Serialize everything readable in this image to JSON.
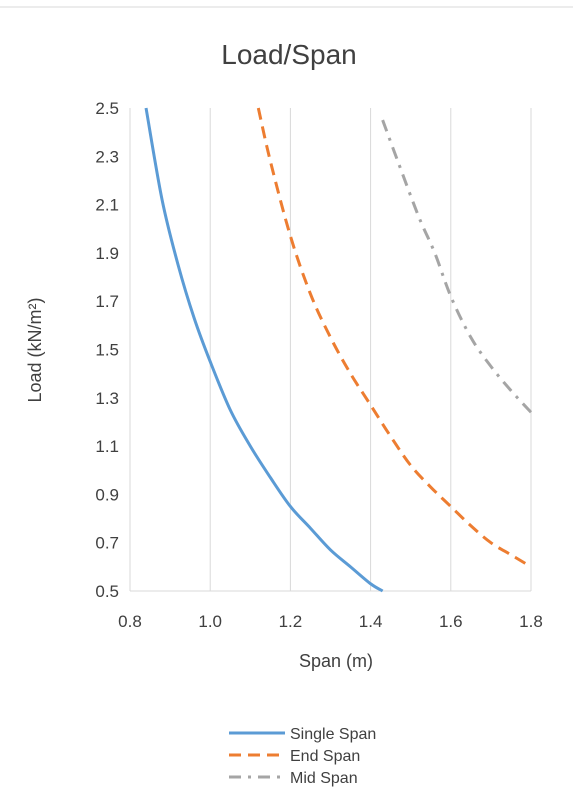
{
  "chart_data": {
    "type": "line",
    "title": "Load/Span",
    "xlabel": "Span (m)",
    "ylabel": "Load (kN/m²)",
    "xlim": [
      0.8,
      1.8
    ],
    "ylim": [
      0.5,
      2.5
    ],
    "xticks": [
      "0.8",
      "1.0",
      "1.2",
      "1.4",
      "1.6",
      "1.8"
    ],
    "yticks": [
      "0.5",
      "0.7",
      "0.9",
      "1.1",
      "1.3",
      "1.5",
      "1.7",
      "1.9",
      "2.1",
      "2.3",
      "2.5"
    ],
    "grid": "vertical",
    "legend_position": "bottom",
    "series": [
      {
        "name": "Single Span",
        "color": "#5b9bd5",
        "dash": "solid",
        "points": [
          [
            0.84,
            2.5
          ],
          [
            0.88,
            2.12
          ],
          [
            0.92,
            1.85
          ],
          [
            0.96,
            1.63
          ],
          [
            1.0,
            1.45
          ],
          [
            1.05,
            1.25
          ],
          [
            1.1,
            1.1
          ],
          [
            1.15,
            0.97
          ],
          [
            1.2,
            0.85
          ],
          [
            1.25,
            0.76
          ],
          [
            1.3,
            0.67
          ],
          [
            1.35,
            0.6
          ],
          [
            1.4,
            0.53
          ],
          [
            1.43,
            0.5
          ]
        ]
      },
      {
        "name": "End Span",
        "color": "#ed7d31",
        "dash": "dash",
        "points": [
          [
            1.12,
            2.5
          ],
          [
            1.15,
            2.28
          ],
          [
            1.2,
            1.97
          ],
          [
            1.25,
            1.73
          ],
          [
            1.3,
            1.55
          ],
          [
            1.35,
            1.4
          ],
          [
            1.4,
            1.27
          ],
          [
            1.45,
            1.14
          ],
          [
            1.5,
            1.02
          ],
          [
            1.55,
            0.93
          ],
          [
            1.6,
            0.85
          ],
          [
            1.65,
            0.77
          ],
          [
            1.7,
            0.7
          ],
          [
            1.75,
            0.65
          ],
          [
            1.79,
            0.61
          ]
        ]
      },
      {
        "name": "Mid Span",
        "color": "#a5a5a5",
        "dash": "dash-dot",
        "points": [
          [
            1.43,
            2.45
          ],
          [
            1.47,
            2.27
          ],
          [
            1.52,
            2.05
          ],
          [
            1.56,
            1.9
          ],
          [
            1.6,
            1.72
          ],
          [
            1.65,
            1.55
          ],
          [
            1.7,
            1.43
          ],
          [
            1.75,
            1.33
          ],
          [
            1.8,
            1.24
          ]
        ]
      }
    ]
  }
}
